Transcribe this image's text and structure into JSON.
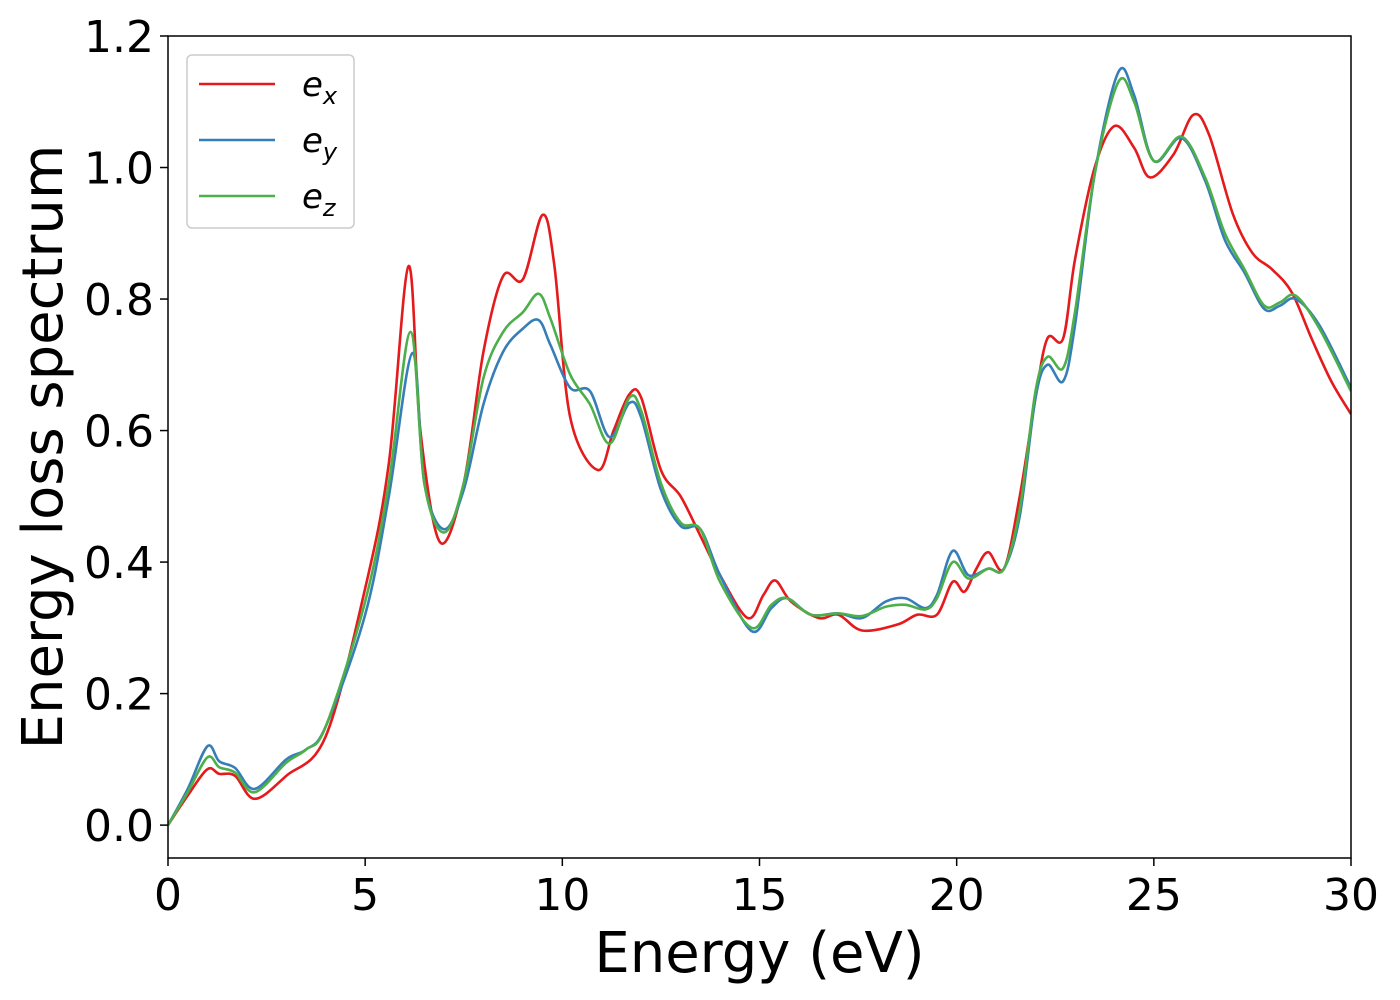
{
  "chart_data": {
    "type": "line",
    "xlabel": "Energy (eV)",
    "ylabel": "Energy loss spectrum",
    "xlim": [
      0,
      30
    ],
    "ylim": [
      -0.05,
      1.2
    ],
    "x_ticks": [
      "0",
      "5",
      "10",
      "15",
      "20",
      "25",
      "30"
    ],
    "y_ticks": [
      "0.0",
      "0.2",
      "0.4",
      "0.6",
      "0.8",
      "1.0",
      "1.2"
    ],
    "grid": false,
    "legend_position": "top-left",
    "series": [
      {
        "name": "e",
        "subscript": "x",
        "color": "#e41a1c",
        "points": [
          [
            0,
            0
          ],
          [
            0.5,
            0.045
          ],
          [
            1,
            0.085
          ],
          [
            1.3,
            0.078
          ],
          [
            1.7,
            0.075
          ],
          [
            2.2,
            0.04
          ],
          [
            3,
            0.075
          ],
          [
            4,
            0.135
          ],
          [
            5,
            0.36
          ],
          [
            5.6,
            0.55
          ],
          [
            6.1,
            0.85
          ],
          [
            6.4,
            0.6
          ],
          [
            6.9,
            0.43
          ],
          [
            7.5,
            0.52
          ],
          [
            8,
            0.72
          ],
          [
            8.5,
            0.835
          ],
          [
            9,
            0.83
          ],
          [
            9.5,
            0.928
          ],
          [
            9.8,
            0.85
          ],
          [
            10.2,
            0.62
          ],
          [
            10.9,
            0.54
          ],
          [
            11.3,
            0.6
          ],
          [
            11.7,
            0.655
          ],
          [
            12,
            0.65
          ],
          [
            12.5,
            0.54
          ],
          [
            13,
            0.5
          ],
          [
            13.5,
            0.44
          ],
          [
            14,
            0.38
          ],
          [
            14.7,
            0.315
          ],
          [
            15.1,
            0.35
          ],
          [
            15.4,
            0.372
          ],
          [
            15.8,
            0.34
          ],
          [
            16.5,
            0.315
          ],
          [
            17,
            0.32
          ],
          [
            17.6,
            0.296
          ],
          [
            18.5,
            0.305
          ],
          [
            19,
            0.32
          ],
          [
            19.5,
            0.32
          ],
          [
            19.9,
            0.37
          ],
          [
            20.2,
            0.355
          ],
          [
            20.5,
            0.39
          ],
          [
            20.8,
            0.415
          ],
          [
            21.2,
            0.39
          ],
          [
            21.6,
            0.5
          ],
          [
            22,
            0.65
          ],
          [
            22.3,
            0.74
          ],
          [
            22.7,
            0.74
          ],
          [
            23,
            0.86
          ],
          [
            23.5,
            1.0
          ],
          [
            24,
            1.063
          ],
          [
            24.5,
            1.03
          ],
          [
            24.9,
            0.985
          ],
          [
            25.5,
            1.02
          ],
          [
            26,
            1.08
          ],
          [
            26.4,
            1.05
          ],
          [
            27,
            0.93
          ],
          [
            27.5,
            0.87
          ],
          [
            28,
            0.845
          ],
          [
            28.5,
            0.81
          ],
          [
            29,
            0.74
          ],
          [
            29.5,
            0.675
          ],
          [
            30,
            0.625
          ]
        ]
      },
      {
        "name": "e",
        "subscript": "y",
        "color": "#377eb8",
        "points": [
          [
            0,
            0
          ],
          [
            0.5,
            0.055
          ],
          [
            1,
            0.12
          ],
          [
            1.3,
            0.097
          ],
          [
            1.7,
            0.087
          ],
          [
            2.2,
            0.055
          ],
          [
            3,
            0.1
          ],
          [
            3.5,
            0.115
          ],
          [
            4,
            0.15
          ],
          [
            5,
            0.32
          ],
          [
            5.6,
            0.5
          ],
          [
            6.2,
            0.718
          ],
          [
            6.5,
            0.52
          ],
          [
            7,
            0.45
          ],
          [
            7.5,
            0.51
          ],
          [
            8,
            0.64
          ],
          [
            8.5,
            0.72
          ],
          [
            9,
            0.755
          ],
          [
            9.4,
            0.768
          ],
          [
            9.7,
            0.73
          ],
          [
            10.2,
            0.665
          ],
          [
            10.7,
            0.66
          ],
          [
            11.2,
            0.59
          ],
          [
            11.7,
            0.642
          ],
          [
            12,
            0.62
          ],
          [
            12.5,
            0.51
          ],
          [
            13,
            0.455
          ],
          [
            13.5,
            0.45
          ],
          [
            14,
            0.38
          ],
          [
            14.8,
            0.295
          ],
          [
            15.3,
            0.33
          ],
          [
            15.7,
            0.345
          ],
          [
            16.3,
            0.32
          ],
          [
            17,
            0.322
          ],
          [
            17.6,
            0.315
          ],
          [
            18.2,
            0.34
          ],
          [
            18.7,
            0.345
          ],
          [
            19.2,
            0.33
          ],
          [
            19.5,
            0.35
          ],
          [
            19.9,
            0.417
          ],
          [
            20.3,
            0.38
          ],
          [
            20.8,
            0.39
          ],
          [
            21.2,
            0.39
          ],
          [
            21.6,
            0.47
          ],
          [
            22,
            0.65
          ],
          [
            22.3,
            0.7
          ],
          [
            22.7,
            0.675
          ],
          [
            23,
            0.76
          ],
          [
            23.5,
            0.99
          ],
          [
            24.1,
            1.145
          ],
          [
            24.5,
            1.11
          ],
          [
            25,
            1.01
          ],
          [
            25.7,
            1.045
          ],
          [
            26.3,
            0.98
          ],
          [
            26.8,
            0.89
          ],
          [
            27.3,
            0.84
          ],
          [
            27.8,
            0.785
          ],
          [
            28.2,
            0.79
          ],
          [
            28.6,
            0.8
          ],
          [
            29.2,
            0.76
          ],
          [
            30,
            0.665
          ]
        ]
      },
      {
        "name": "e",
        "subscript": "z",
        "color": "#4daf4a",
        "points": [
          [
            0,
            0
          ],
          [
            0.5,
            0.05
          ],
          [
            1,
            0.103
          ],
          [
            1.3,
            0.088
          ],
          [
            1.7,
            0.08
          ],
          [
            2.2,
            0.05
          ],
          [
            3,
            0.095
          ],
          [
            3.5,
            0.115
          ],
          [
            4,
            0.15
          ],
          [
            5,
            0.34
          ],
          [
            5.6,
            0.52
          ],
          [
            6.15,
            0.75
          ],
          [
            6.5,
            0.52
          ],
          [
            7,
            0.445
          ],
          [
            7.5,
            0.52
          ],
          [
            8,
            0.68
          ],
          [
            8.5,
            0.75
          ],
          [
            9,
            0.78
          ],
          [
            9.4,
            0.808
          ],
          [
            9.7,
            0.77
          ],
          [
            10.2,
            0.685
          ],
          [
            10.7,
            0.64
          ],
          [
            11.2,
            0.58
          ],
          [
            11.7,
            0.65
          ],
          [
            12,
            0.63
          ],
          [
            12.5,
            0.52
          ],
          [
            13,
            0.46
          ],
          [
            13.5,
            0.45
          ],
          [
            14,
            0.37
          ],
          [
            14.8,
            0.3
          ],
          [
            15.3,
            0.335
          ],
          [
            15.7,
            0.345
          ],
          [
            16.3,
            0.32
          ],
          [
            17,
            0.322
          ],
          [
            17.6,
            0.318
          ],
          [
            18.2,
            0.332
          ],
          [
            18.7,
            0.335
          ],
          [
            19.2,
            0.328
          ],
          [
            19.5,
            0.345
          ],
          [
            19.9,
            0.4
          ],
          [
            20.3,
            0.375
          ],
          [
            20.8,
            0.39
          ],
          [
            21.2,
            0.39
          ],
          [
            21.6,
            0.48
          ],
          [
            22,
            0.66
          ],
          [
            22.3,
            0.712
          ],
          [
            22.7,
            0.695
          ],
          [
            23,
            0.78
          ],
          [
            23.5,
            0.99
          ],
          [
            24.1,
            1.13
          ],
          [
            24.5,
            1.1
          ],
          [
            25,
            1.01
          ],
          [
            25.7,
            1.047
          ],
          [
            26.3,
            0.985
          ],
          [
            26.8,
            0.9
          ],
          [
            27.3,
            0.845
          ],
          [
            27.8,
            0.79
          ],
          [
            28.2,
            0.795
          ],
          [
            28.6,
            0.805
          ],
          [
            29.2,
            0.755
          ],
          [
            30,
            0.66
          ]
        ]
      }
    ]
  }
}
